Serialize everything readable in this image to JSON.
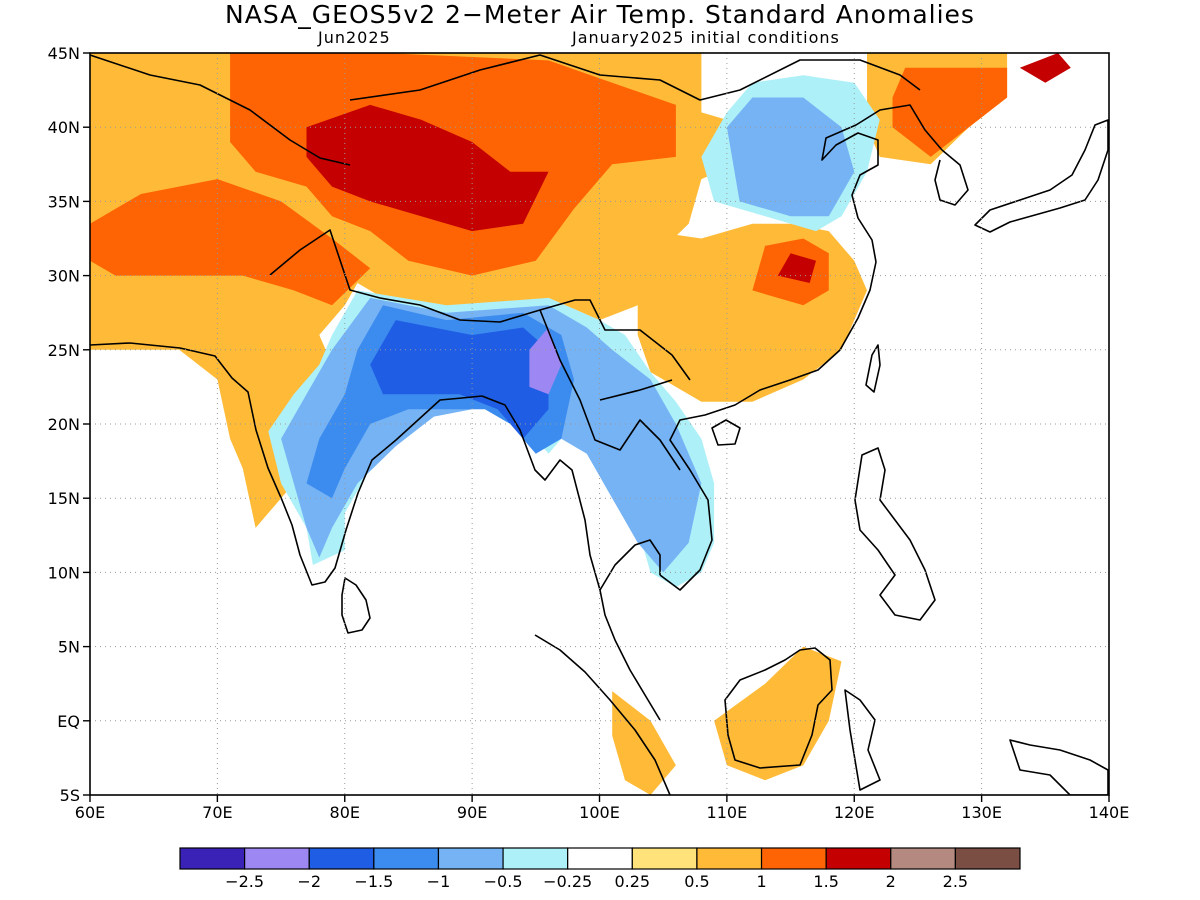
{
  "header": {
    "title": "NASA_GEOS5v2 2−Meter Air Temp. Standard Anomalies",
    "target_month": "Jun2025",
    "init_conditions": "January2025 initial conditions"
  },
  "chart_data": {
    "type": "heatmap",
    "variable": "2-meter air temperature standardized anomaly",
    "x_range_deg": [
      60,
      140
    ],
    "y_range_deg": [
      -5,
      45
    ],
    "x_ticks": [
      {
        "v": 60,
        "label": "60E"
      },
      {
        "v": 70,
        "label": "70E"
      },
      {
        "v": 80,
        "label": "80E"
      },
      {
        "v": 90,
        "label": "90E"
      },
      {
        "v": 100,
        "label": "100E"
      },
      {
        "v": 110,
        "label": "110E"
      },
      {
        "v": 120,
        "label": "120E"
      },
      {
        "v": 130,
        "label": "130E"
      },
      {
        "v": 140,
        "label": "140E"
      }
    ],
    "y_ticks": [
      {
        "v": 45,
        "label": "45N"
      },
      {
        "v": 40,
        "label": "40N"
      },
      {
        "v": 35,
        "label": "35N"
      },
      {
        "v": 30,
        "label": "30N"
      },
      {
        "v": 25,
        "label": "25N"
      },
      {
        "v": 20,
        "label": "20N"
      },
      {
        "v": 15,
        "label": "15N"
      },
      {
        "v": 10,
        "label": "10N"
      },
      {
        "v": 5,
        "label": "5N"
      },
      {
        "v": 0,
        "label": "EQ"
      },
      {
        "v": -5,
        "label": "5S"
      }
    ],
    "grid": "dotted",
    "legend": {
      "placement": "bottom",
      "colors": [
        "#3b22b7",
        "#9d87f2",
        "#1f5ee4",
        "#3c8cef",
        "#75b3f5",
        "#aef0f8",
        "#ffffff",
        "#ffe27a",
        "#ffbb38",
        "#ff6404",
        "#c40000",
        "#b48a80",
        "#7a4e42"
      ],
      "labels": [
        "−2.5",
        "−2",
        "−1.5",
        "−1",
        "−0.5",
        "−0.25",
        "0.25",
        "0.5",
        "1",
        "1.5",
        "2",
        "2.5"
      ]
    },
    "regions": [
      {
        "level": 0.5,
        "color": "#ffbb38",
        "pts": [
          [
            60,
            45
          ],
          [
            108,
            45
          ],
          [
            108,
            41
          ],
          [
            112,
            40
          ],
          [
            114,
            38.8
          ],
          [
            108,
            36.5
          ],
          [
            107,
            33.5
          ],
          [
            104,
            31
          ],
          [
            103,
            28
          ],
          [
            100,
            27
          ],
          [
            96,
            28.5
          ],
          [
            88,
            27.5
          ],
          [
            83,
            28.5
          ],
          [
            81,
            29.5
          ],
          [
            80,
            28
          ],
          [
            78,
            26
          ],
          [
            80,
            22
          ],
          [
            79,
            20
          ],
          [
            77,
            17
          ],
          [
            75,
            15
          ],
          [
            73,
            13
          ],
          [
            72,
            17
          ],
          [
            71,
            19
          ],
          [
            70,
            23
          ],
          [
            67,
            25
          ],
          [
            60,
            25
          ]
        ]
      },
      {
        "level": 0.5,
        "color": "#ffbb38",
        "pts": [
          [
            121,
            45
          ],
          [
            132,
            45
          ],
          [
            132,
            42
          ],
          [
            129,
            40
          ],
          [
            126,
            37.5
          ],
          [
            122,
            38
          ],
          [
            121,
            40
          ]
        ]
      },
      {
        "level": 0.5,
        "color": "#ffbb38",
        "pts": [
          [
            103,
            29
          ],
          [
            104,
            33
          ],
          [
            108,
            32.5
          ],
          [
            112,
            33.5
          ],
          [
            115,
            33.5
          ],
          [
            118,
            33
          ],
          [
            120,
            31
          ],
          [
            121,
            29
          ],
          [
            119,
            25
          ],
          [
            116,
            23
          ],
          [
            112,
            21.5
          ],
          [
            108,
            21.5
          ],
          [
            106,
            22.5
          ],
          [
            104,
            23.5
          ],
          [
            103,
            26
          ]
        ]
      },
      {
        "level": 0.5,
        "color": "#ffbb38",
        "pts": [
          [
            109,
            0
          ],
          [
            113,
            2.5
          ],
          [
            116,
            5
          ],
          [
            119,
            4
          ],
          [
            118,
            0
          ],
          [
            116,
            -3
          ],
          [
            113,
            -4
          ],
          [
            110,
            -3
          ]
        ]
      },
      {
        "level": 0.5,
        "color": "#ffbb38",
        "pts": [
          [
            101,
            2
          ],
          [
            104,
            0
          ],
          [
            106,
            -3
          ],
          [
            104,
            -5
          ],
          [
            102,
            -4
          ],
          [
            101,
            -1
          ]
        ]
      },
      {
        "level": 1.0,
        "color": "#ff6404",
        "pts": [
          [
            71,
            45
          ],
          [
            83,
            45
          ],
          [
            96,
            44.5
          ],
          [
            101,
            43
          ],
          [
            106,
            41.5
          ],
          [
            106,
            38
          ],
          [
            101,
            37.5
          ],
          [
            98,
            34.5
          ],
          [
            95,
            31
          ],
          [
            90,
            30
          ],
          [
            85,
            31
          ],
          [
            82,
            33
          ],
          [
            79,
            34
          ],
          [
            77,
            36
          ],
          [
            73,
            37
          ],
          [
            71,
            39
          ]
        ]
      },
      {
        "level": 1.0,
        "color": "#ff6404",
        "pts": [
          [
            60,
            33.5
          ],
          [
            64,
            35.5
          ],
          [
            70,
            36.5
          ],
          [
            75,
            35
          ],
          [
            79,
            32.5
          ],
          [
            82,
            30.5
          ],
          [
            79,
            28
          ],
          [
            76,
            29
          ],
          [
            72,
            30
          ],
          [
            68,
            30
          ],
          [
            62,
            30
          ],
          [
            60,
            31
          ]
        ]
      },
      {
        "level": 1.0,
        "color": "#ff6404",
        "pts": [
          [
            124,
            44
          ],
          [
            132,
            44
          ],
          [
            132,
            42
          ],
          [
            129,
            40
          ],
          [
            126,
            38
          ],
          [
            123,
            40
          ],
          [
            123,
            42
          ]
        ]
      },
      {
        "level": 1.0,
        "color": "#ff6404",
        "pts": [
          [
            112,
            29
          ],
          [
            113,
            32
          ],
          [
            116,
            32.5
          ],
          [
            118,
            31.5
          ],
          [
            118,
            29
          ],
          [
            116,
            28
          ],
          [
            114,
            28.5
          ]
        ]
      },
      {
        "level": 1.5,
        "color": "#c40000",
        "pts": [
          [
            77,
            40
          ],
          [
            82,
            41.5
          ],
          [
            86,
            40.5
          ],
          [
            90,
            39
          ],
          [
            93,
            37
          ],
          [
            96,
            37
          ],
          [
            94,
            33.5
          ],
          [
            90,
            33
          ],
          [
            86,
            34
          ],
          [
            82,
            35
          ],
          [
            79,
            36
          ],
          [
            77,
            38
          ]
        ]
      },
      {
        "level": 1.5,
        "color": "#c40000",
        "pts": [
          [
            133,
            44
          ],
          [
            136,
            45
          ],
          [
            137,
            44
          ],
          [
            135,
            43
          ]
        ]
      },
      {
        "level": 1.5,
        "color": "#c40000",
        "pts": [
          [
            114,
            30
          ],
          [
            115,
            31.5
          ],
          [
            117,
            31
          ],
          [
            116.5,
            29.5
          ]
        ]
      },
      {
        "level": -0.25,
        "color": "#aef0f8",
        "pts": [
          [
            81,
            29
          ],
          [
            88,
            28
          ],
          [
            96,
            28.5
          ],
          [
            100,
            27
          ],
          [
            102,
            26
          ],
          [
            104,
            23.5
          ],
          [
            106,
            21.5
          ],
          [
            108,
            19
          ],
          [
            109,
            16
          ],
          [
            109,
            12
          ],
          [
            108,
            10
          ],
          [
            106,
            9
          ],
          [
            104,
            10
          ],
          [
            103,
            13
          ],
          [
            101,
            15
          ],
          [
            100,
            17
          ],
          [
            98,
            20
          ],
          [
            96,
            18
          ],
          [
            94,
            20
          ],
          [
            92,
            22
          ],
          [
            90,
            21.5
          ],
          [
            88,
            21.5
          ],
          [
            85,
            19.5
          ],
          [
            82,
            17
          ],
          [
            80,
            14
          ],
          [
            80,
            11.5
          ],
          [
            77.5,
            10.5
          ],
          [
            77,
            13
          ],
          [
            75,
            16
          ],
          [
            74,
            19.5
          ],
          [
            76,
            22
          ],
          [
            78,
            24
          ],
          [
            79,
            26
          ]
        ]
      },
      {
        "level": -0.25,
        "color": "#aef0f8",
        "pts": [
          [
            110,
            41
          ],
          [
            112,
            43
          ],
          [
            116,
            43.5
          ],
          [
            120,
            43
          ],
          [
            122,
            40.5
          ],
          [
            121,
            37
          ],
          [
            119,
            34
          ],
          [
            117,
            33
          ],
          [
            113,
            34
          ],
          [
            109,
            35
          ],
          [
            108,
            38
          ]
        ]
      },
      {
        "level": -0.5,
        "color": "#75b3f5",
        "pts": [
          [
            82,
            28.5
          ],
          [
            88,
            27.5
          ],
          [
            96,
            28
          ],
          [
            99,
            26.5
          ],
          [
            101,
            25
          ],
          [
            104,
            23
          ],
          [
            106,
            20
          ],
          [
            108,
            16
          ],
          [
            107,
            12
          ],
          [
            105,
            10
          ],
          [
            103,
            12
          ],
          [
            101,
            15
          ],
          [
            99,
            18
          ],
          [
            97,
            19
          ],
          [
            95,
            21
          ],
          [
            93,
            22
          ],
          [
            90,
            21
          ],
          [
            87,
            20.5
          ],
          [
            84,
            18.5
          ],
          [
            81,
            16
          ],
          [
            79,
            13
          ],
          [
            78,
            11
          ],
          [
            77,
            13
          ],
          [
            76,
            16
          ],
          [
            75,
            19
          ],
          [
            77,
            22
          ],
          [
            79,
            25
          ]
        ]
      },
      {
        "level": -0.5,
        "color": "#75b3f5",
        "pts": [
          [
            110,
            40
          ],
          [
            112,
            42
          ],
          [
            116,
            42
          ],
          [
            119,
            40
          ],
          [
            120,
            37
          ],
          [
            118,
            34
          ],
          [
            115,
            34
          ],
          [
            111,
            35
          ]
        ]
      },
      {
        "level": -1.0,
        "color": "#3c8cef",
        "pts": [
          [
            83,
            28
          ],
          [
            88,
            27
          ],
          [
            94,
            27.5
          ],
          [
            97,
            26
          ],
          [
            98,
            23
          ],
          [
            97,
            19
          ],
          [
            95,
            18
          ],
          [
            93,
            20
          ],
          [
            91,
            21
          ],
          [
            88,
            21
          ],
          [
            85,
            21
          ],
          [
            82,
            20
          ],
          [
            80,
            17
          ],
          [
            79,
            15
          ],
          [
            77,
            16
          ],
          [
            78,
            19
          ],
          [
            80,
            22
          ],
          [
            81,
            25
          ]
        ]
      },
      {
        "level": -1.5,
        "color": "#1f5ee4",
        "pts": [
          [
            84,
            27
          ],
          [
            90,
            26
          ],
          [
            94,
            26.5
          ],
          [
            96,
            25
          ],
          [
            96,
            21
          ],
          [
            94,
            19
          ],
          [
            92,
            21
          ],
          [
            89,
            22
          ],
          [
            86,
            22
          ],
          [
            83,
            22
          ],
          [
            82,
            24
          ]
        ]
      },
      {
        "level": -2.0,
        "color": "#9d87f2",
        "pts": [
          [
            94.5,
            25
          ],
          [
            96,
            26.5
          ],
          [
            97,
            24
          ],
          [
            96,
            22
          ],
          [
            94.5,
            22.5
          ]
        ]
      }
    ]
  }
}
